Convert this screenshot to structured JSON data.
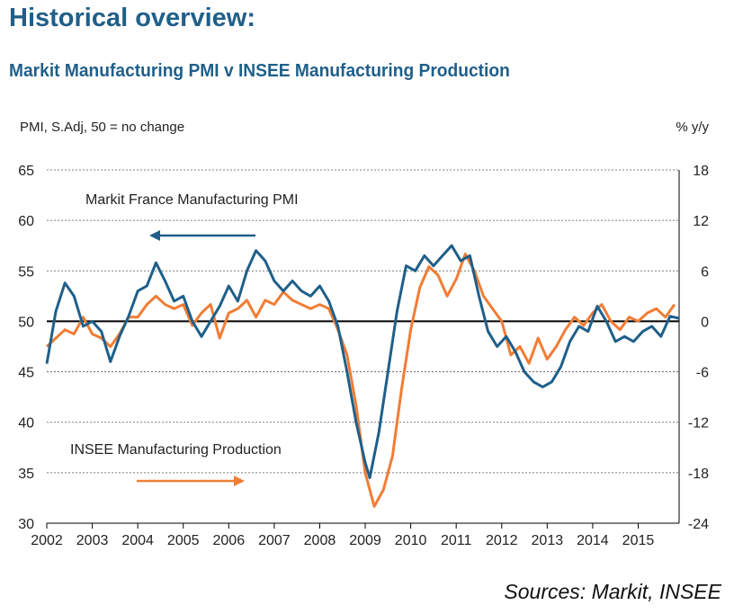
{
  "page": {
    "title": "Historical overview:",
    "subtitle": "Markit Manufacturing PMI v INSEE Manufacturing Production",
    "sources": "Sources: Markit, INSEE"
  },
  "colors": {
    "pmi": "#1f5f8a",
    "insee": "#f07d35",
    "title": "#1f5f8a",
    "zero_line": "#000000",
    "grid": "#555555"
  },
  "chart_data": {
    "type": "line",
    "left_axis": {
      "label": "PMI, S.Adj, 50 = no change",
      "ylim": [
        30,
        65
      ],
      "ticks": [
        30,
        35,
        40,
        45,
        50,
        55,
        60,
        65
      ]
    },
    "right_axis": {
      "label": "% y/y",
      "ylim": [
        -24,
        18
      ],
      "ticks": [
        -24,
        -18,
        -12,
        -6,
        0,
        6,
        12,
        18
      ]
    },
    "xlim": [
      2002,
      2015.9
    ],
    "x_ticks": [
      "2002",
      "2003",
      "2004",
      "2005",
      "2006",
      "2007",
      "2008",
      "2009",
      "2010",
      "2011",
      "2012",
      "2013",
      "2014",
      "2015"
    ],
    "grid": "dashed horizontal",
    "annotations": [
      {
        "text": "Markit France Manufacturing PMI",
        "arrow": "left",
        "series": 0
      },
      {
        "text": "INSEE Manufacturing Production",
        "arrow": "right",
        "series": 1
      }
    ],
    "series": [
      {
        "name": "Markit France Manufacturing PMI",
        "axis": "left",
        "x": [
          2002.0,
          2002.2,
          2002.4,
          2002.6,
          2002.8,
          2003.0,
          2003.2,
          2003.4,
          2003.6,
          2003.8,
          2004.0,
          2004.2,
          2004.4,
          2004.6,
          2004.8,
          2005.0,
          2005.2,
          2005.4,
          2005.6,
          2005.8,
          2006.0,
          2006.2,
          2006.4,
          2006.6,
          2006.8,
          2007.0,
          2007.2,
          2007.4,
          2007.6,
          2007.8,
          2008.0,
          2008.2,
          2008.4,
          2008.6,
          2008.8,
          2009.0,
          2009.1,
          2009.3,
          2009.5,
          2009.7,
          2009.9,
          2010.1,
          2010.3,
          2010.5,
          2010.7,
          2010.9,
          2011.1,
          2011.3,
          2011.5,
          2011.7,
          2011.9,
          2012.1,
          2012.3,
          2012.5,
          2012.7,
          2012.9,
          2013.1,
          2013.3,
          2013.5,
          2013.7,
          2013.9,
          2014.1,
          2014.3,
          2014.5,
          2014.7,
          2014.9,
          2015.1,
          2015.3,
          2015.5,
          2015.7,
          2015.9
        ],
        "values": [
          45.8,
          51.0,
          53.8,
          52.5,
          49.5,
          50.0,
          49.0,
          46.0,
          48.5,
          50.5,
          53.0,
          53.5,
          55.8,
          54.0,
          52.0,
          52.5,
          50.0,
          48.5,
          50.0,
          51.5,
          53.5,
          52.0,
          55.0,
          57.0,
          56.0,
          54.0,
          53.0,
          54.0,
          53.0,
          52.5,
          53.5,
          52.0,
          49.5,
          45.0,
          40.0,
          36.0,
          34.5,
          39.0,
          45.0,
          51.0,
          55.5,
          55.0,
          56.5,
          55.5,
          56.5,
          57.5,
          56.0,
          56.5,
          52.5,
          49.0,
          47.5,
          48.5,
          47.0,
          45.0,
          44.0,
          43.5,
          44.0,
          45.5,
          48.0,
          49.5,
          49.0,
          51.5,
          50.0,
          48.0,
          48.5,
          48.0,
          49.0,
          49.5,
          48.5,
          50.5,
          50.3
        ]
      },
      {
        "name": "INSEE Manufacturing Production",
        "axis": "right",
        "x": [
          2002.0,
          2002.2,
          2002.4,
          2002.6,
          2002.8,
          2003.0,
          2003.2,
          2003.4,
          2003.6,
          2003.8,
          2004.0,
          2004.2,
          2004.4,
          2004.6,
          2004.8,
          2005.0,
          2005.2,
          2005.4,
          2005.6,
          2005.8,
          2006.0,
          2006.2,
          2006.4,
          2006.6,
          2006.8,
          2007.0,
          2007.2,
          2007.4,
          2007.6,
          2007.8,
          2008.0,
          2008.2,
          2008.4,
          2008.6,
          2008.8,
          2009.0,
          2009.2,
          2009.4,
          2009.6,
          2009.8,
          2010.0,
          2010.2,
          2010.4,
          2010.6,
          2010.8,
          2011.0,
          2011.2,
          2011.4,
          2011.6,
          2011.8,
          2012.0,
          2012.2,
          2012.4,
          2012.6,
          2012.8,
          2013.0,
          2013.2,
          2013.4,
          2013.6,
          2013.8,
          2014.0,
          2014.2,
          2014.4,
          2014.6,
          2014.8,
          2015.0,
          2015.2,
          2015.4,
          2015.6,
          2015.8
        ],
        "values": [
          -3.0,
          -2.0,
          -1.0,
          -1.5,
          0.5,
          -1.5,
          -2.0,
          -3.0,
          -1.5,
          0.5,
          0.5,
          2.0,
          3.0,
          2.0,
          1.5,
          2.0,
          -0.5,
          1.0,
          2.0,
          -2.0,
          1.0,
          1.5,
          2.5,
          0.5,
          2.5,
          2.0,
          3.5,
          2.5,
          2.0,
          1.5,
          2.0,
          1.5,
          -1.0,
          -4.0,
          -10.0,
          -18.0,
          -22.0,
          -20.0,
          -16.0,
          -8.0,
          -1.0,
          4.0,
          6.5,
          5.5,
          3.0,
          5.0,
          8.0,
          6.0,
          3.0,
          1.5,
          0.0,
          -4.0,
          -3.0,
          -5.0,
          -2.0,
          -4.5,
          -3.0,
          -1.0,
          0.5,
          -0.5,
          1.0,
          2.0,
          0.0,
          -1.0,
          0.5,
          0.0,
          1.0,
          1.5,
          0.5,
          2.0
        ]
      }
    ]
  }
}
